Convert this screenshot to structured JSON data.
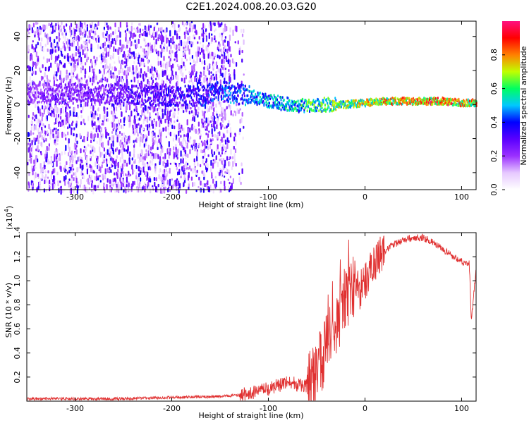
{
  "title": "C2E1.2024.008.20.03.G20",
  "colors": {
    "snr_line": "#e03030",
    "frame": "#000000",
    "colormap": [
      "#ffffff",
      "#e6c8ff",
      "#9b30ff",
      "#5a00ff",
      "#0000ff",
      "#00c8ff",
      "#00ff60",
      "#c0ff00",
      "#ff8000",
      "#ff0000",
      "#ff1080"
    ]
  },
  "chart_data": [
    {
      "type": "heatmap",
      "xlabel": "Height of straight line (km)",
      "ylabel": "Frequency (Hz)",
      "xlim": [
        -350,
        115
      ],
      "ylim": [
        -50,
        49
      ],
      "xticks": [
        -300,
        -200,
        -100,
        0,
        100
      ],
      "yticks": [
        -40,
        -20,
        0,
        20,
        40
      ],
      "colorbar": {
        "label": "Normalized spectral amplitude",
        "range": [
          0,
          1
        ],
        "ticks": [
          0.0,
          0.2,
          0.4,
          0.6,
          0.8
        ]
      },
      "ridge": {
        "x": [
          -350,
          -300,
          -250,
          -200,
          -170,
          -150,
          -120,
          -100,
          -80,
          -60,
          -40,
          -20,
          0,
          20,
          50,
          80,
          100,
          115
        ],
        "frequency": [
          7,
          6,
          6,
          5,
          5,
          8,
          5,
          2,
          0,
          -1,
          0,
          0,
          1,
          2,
          2,
          2,
          1,
          1
        ],
        "amplitude": [
          0.25,
          0.3,
          0.35,
          0.4,
          0.45,
          0.5,
          0.55,
          0.6,
          0.65,
          0.7,
          0.75,
          0.8,
          0.85,
          0.9,
          0.95,
          1.0,
          0.95,
          0.9
        ]
      }
    },
    {
      "type": "line",
      "xlabel": "Height of straight line (km)",
      "ylabel": "SNR (10 * v/v)",
      "yscale_label": "(x10",
      "yscale_exp": "4",
      "yscale_close": ")",
      "xlim": [
        -350,
        115
      ],
      "ylim": [
        0,
        1.4
      ],
      "xticks": [
        -300,
        -200,
        -100,
        0,
        100
      ],
      "yticks": [
        "0.2",
        "0.4",
        "0.6",
        "0.8",
        "1.0",
        "1.2",
        "1.4"
      ],
      "series": [
        {
          "x": [
            -350,
            -300,
            -250,
            -200,
            -150,
            -130,
            -110,
            -100,
            -90,
            -80,
            -70,
            -60,
            -50,
            -45,
            -40,
            -35,
            -30,
            -25,
            -20,
            -15,
            -10,
            -5,
            0,
            10,
            20,
            30,
            40,
            50,
            60,
            70,
            80,
            90,
            100,
            105,
            108,
            110,
            115
          ],
          "values": [
            0.02,
            0.02,
            0.02,
            0.03,
            0.04,
            0.05,
            0.08,
            0.1,
            0.13,
            0.15,
            0.14,
            0.12,
            0.2,
            0.35,
            0.45,
            0.55,
            0.65,
            0.75,
            0.85,
            0.92,
            0.98,
            0.92,
            1.0,
            1.15,
            1.25,
            1.3,
            1.34,
            1.36,
            1.36,
            1.32,
            1.26,
            1.21,
            1.16,
            1.15,
            1.14,
            0.68,
            1.08
          ]
        }
      ]
    }
  ]
}
